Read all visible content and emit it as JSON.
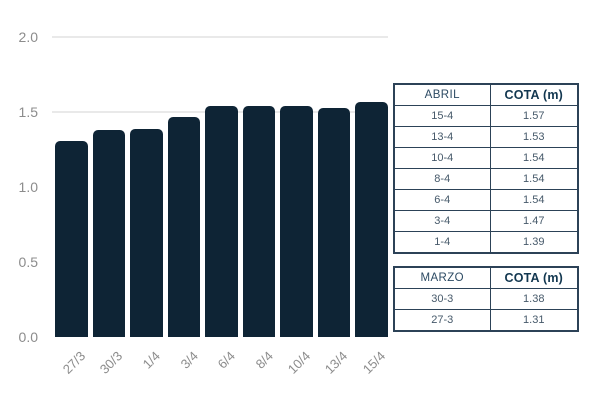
{
  "chart_data": {
    "type": "bar",
    "categories": [
      "27/3",
      "30/3",
      "1/4",
      "3/4",
      "6/4",
      "8/4",
      "10/4",
      "13/4",
      "15/4"
    ],
    "values": [
      1.31,
      1.38,
      1.39,
      1.47,
      1.54,
      1.54,
      1.54,
      1.53,
      1.57
    ],
    "title": "",
    "xlabel": "",
    "ylabel": "",
    "ylim": [
      0,
      2.0
    ],
    "yticks": [
      {
        "value": 0.0,
        "label": "0.0"
      },
      {
        "value": 0.5,
        "label": "0.5"
      },
      {
        "value": 1.0,
        "label": "1.0"
      },
      {
        "value": 1.5,
        "label": "1.5"
      },
      {
        "value": 2.0,
        "label": "2.0"
      }
    ],
    "visible_gridlines": [
      1.5,
      2.0
    ],
    "grid": "partial",
    "legend_position": "none"
  },
  "tables": [
    {
      "id": "abril",
      "month_header": "ABRIL",
      "value_header": "COTA (m)",
      "rows": [
        [
          "15-4",
          "1.57"
        ],
        [
          "13-4",
          "1.53"
        ],
        [
          "10-4",
          "1.54"
        ],
        [
          "8-4",
          "1.54"
        ],
        [
          "6-4",
          "1.54"
        ],
        [
          "3-4",
          "1.47"
        ],
        [
          "1-4",
          "1.39"
        ]
      ]
    },
    {
      "id": "marzo",
      "month_header": "MARZO",
      "value_header": "COTA (m)",
      "rows": [
        [
          "30-3",
          "1.38"
        ],
        [
          "27-3",
          "1.31"
        ]
      ]
    }
  ],
  "colors": {
    "bar": "#0e2435",
    "gridline": "#e9e9e9",
    "axis_text": "#8c8c8c",
    "table_border": "#2c4257",
    "table_month_header_text": "#2c4a63",
    "table_value_header_text": "#123750",
    "table_cell_text": "#46596a"
  }
}
